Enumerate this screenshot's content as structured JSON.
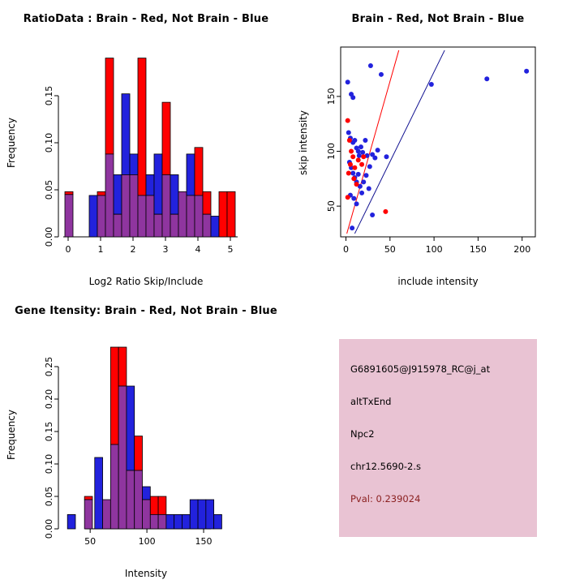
{
  "info_panel": {
    "background": "#e9c3d3",
    "lines": [
      "G6891605@J915978_RC@j_at",
      "altTxEnd",
      "Npc2",
      "chr12.5690-2.s"
    ],
    "pval": "Pval: 0.239024",
    "pval_color": "#8b2020"
  },
  "chart_data": [
    {
      "type": "bar",
      "subtype": "overlaid-histogram",
      "title": "RatioData : Brain - Red, Not Brain - Blue",
      "xlabel": "Log2 Ratio Skip/Include",
      "ylabel": "Frequency",
      "legend": {
        "red": "Brain",
        "blue": "Not Brain"
      },
      "xlim": [
        -0.3,
        5.4
      ],
      "ylim": [
        0,
        0.2
      ],
      "bin_width": 0.25,
      "x_ticks": [
        {
          "v": 0,
          "label": "0"
        },
        {
          "v": 1,
          "label": "1"
        },
        {
          "v": 2,
          "label": "2"
        },
        {
          "v": 3,
          "label": "3"
        },
        {
          "v": 4,
          "label": "4"
        },
        {
          "v": 5,
          "label": "5"
        }
      ],
      "y_ticks": [
        {
          "v": 0,
          "label": "0.00"
        },
        {
          "v": 0.05,
          "label": "0.05"
        },
        {
          "v": 0.1,
          "label": "0.10"
        },
        {
          "v": 0.15,
          "label": "0.15"
        }
      ],
      "colors": {
        "red": "#ff0000",
        "blue": "#2222dd",
        "overlap": "#8f359f"
      },
      "bins": [
        {
          "x": -0.1,
          "red": 0.048,
          "blue": 0.045
        },
        {
          "x": 0.65,
          "red": 0,
          "blue": 0.044
        },
        {
          "x": 0.9,
          "red": 0.048,
          "blue": 0.044
        },
        {
          "x": 1.15,
          "red": 0.19,
          "blue": 0.088
        },
        {
          "x": 1.4,
          "red": 0.024,
          "blue": 0.066
        },
        {
          "x": 1.65,
          "red": 0.066,
          "blue": 0.152
        },
        {
          "x": 1.9,
          "red": 0.066,
          "blue": 0.088
        },
        {
          "x": 2.15,
          "red": 0.19,
          "blue": 0.044
        },
        {
          "x": 2.4,
          "red": 0.044,
          "blue": 0.066
        },
        {
          "x": 2.65,
          "red": 0.024,
          "blue": 0.088
        },
        {
          "x": 2.9,
          "red": 0.143,
          "blue": 0.066
        },
        {
          "x": 3.15,
          "red": 0.024,
          "blue": 0.066
        },
        {
          "x": 3.4,
          "red": 0.048,
          "blue": 0.048
        },
        {
          "x": 3.65,
          "red": 0.044,
          "blue": 0.088
        },
        {
          "x": 3.9,
          "red": 0.095,
          "blue": 0.044
        },
        {
          "x": 4.15,
          "red": 0.048,
          "blue": 0.024
        },
        {
          "x": 4.4,
          "red": 0,
          "blue": 0.022
        },
        {
          "x": 4.65,
          "red": 0.048,
          "blue": 0
        },
        {
          "x": 4.9,
          "red": 0.048,
          "blue": 0
        }
      ]
    },
    {
      "type": "scatter",
      "title": "Brain - Red, Not Brain - Blue",
      "xlabel": "include intensity",
      "ylabel": "skip intensity",
      "xlim": [
        -6,
        215
      ],
      "ylim": [
        22,
        195
      ],
      "x_ticks": [
        {
          "v": 0,
          "label": "0"
        },
        {
          "v": 50,
          "label": "50"
        },
        {
          "v": 100,
          "label": "100"
        },
        {
          "v": 150,
          "label": "150"
        },
        {
          "v": 200,
          "label": "200"
        }
      ],
      "y_ticks": [
        {
          "v": 50,
          "label": "50"
        },
        {
          "v": 100,
          "label": "100"
        },
        {
          "v": 150,
          "label": "150"
        }
      ],
      "series": [
        {
          "name": "Not Brain",
          "color": "#2222dd",
          "points": [
            [
              2,
              163
            ],
            [
              6,
              152
            ],
            [
              8,
              149
            ],
            [
              28,
              178
            ],
            [
              40,
              170
            ],
            [
              97,
              161
            ],
            [
              160,
              166
            ],
            [
              205,
              173
            ],
            [
              3,
              117
            ],
            [
              5,
              112
            ],
            [
              8,
              108
            ],
            [
              10,
              110
            ],
            [
              12,
              103
            ],
            [
              14,
              100
            ],
            [
              15,
              96
            ],
            [
              17,
              104
            ],
            [
              19,
              99
            ],
            [
              22,
              110
            ],
            [
              24,
              96
            ],
            [
              27,
              86
            ],
            [
              30,
              97
            ],
            [
              33,
              94
            ],
            [
              36,
              101
            ],
            [
              46,
              95
            ],
            [
              4,
              90
            ],
            [
              6,
              85
            ],
            [
              8,
              80
            ],
            [
              10,
              76
            ],
            [
              12,
              72
            ],
            [
              14,
              79
            ],
            [
              16,
              68
            ],
            [
              18,
              62
            ],
            [
              20,
              72
            ],
            [
              23,
              78
            ],
            [
              26,
              66
            ],
            [
              5,
              60
            ],
            [
              9,
              57
            ],
            [
              12,
              52
            ],
            [
              30,
              42
            ],
            [
              7,
              30
            ]
          ]
        },
        {
          "name": "Brain",
          "color": "#ff0000",
          "points": [
            [
              2,
              128
            ],
            [
              4,
              110
            ],
            [
              6,
              100
            ],
            [
              8,
              95
            ],
            [
              5,
              88
            ],
            [
              3,
              80
            ],
            [
              9,
              75
            ],
            [
              12,
              70
            ],
            [
              14,
              92
            ],
            [
              18,
              88
            ],
            [
              20,
              95
            ],
            [
              45,
              45
            ],
            [
              2,
              58
            ],
            [
              10,
              85
            ]
          ]
        }
      ],
      "lines": [
        {
          "name": "brain-fit-line",
          "color": "#ff0000",
          "from": [
            1,
            25
          ],
          "to": [
            60,
            192
          ]
        },
        {
          "name": "notbrain-fit-line",
          "color": "#101090",
          "from": [
            10,
            25
          ],
          "to": [
            112,
            192
          ]
        }
      ]
    },
    {
      "type": "bar",
      "subtype": "overlaid-histogram",
      "title": "Gene Itensity: Brain - Red, Not Brain - Blue",
      "xlabel": "Intensity",
      "ylabel": "Frequency",
      "legend": {
        "red": "Brain",
        "blue": "Not Brain"
      },
      "xlim": [
        22,
        185
      ],
      "ylim": [
        0,
        0.29
      ],
      "bin_width": 7,
      "x_ticks": [
        {
          "v": 50,
          "label": "50"
        },
        {
          "v": 100,
          "label": "100"
        },
        {
          "v": 150,
          "label": "150"
        }
      ],
      "y_ticks": [
        {
          "v": 0,
          "label": "0.00"
        },
        {
          "v": 0.05,
          "label": "0.05"
        },
        {
          "v": 0.1,
          "label": "0.10"
        },
        {
          "v": 0.15,
          "label": "0.15"
        },
        {
          "v": 0.2,
          "label": "0.20"
        },
        {
          "v": 0.25,
          "label": "0.25"
        }
      ],
      "colors": {
        "red": "#ff0000",
        "blue": "#2222dd",
        "overlap": "#8f359f"
      },
      "bins": [
        {
          "x": 30,
          "red": 0,
          "blue": 0.022
        },
        {
          "x": 45,
          "red": 0.05,
          "blue": 0.045
        },
        {
          "x": 54,
          "red": 0,
          "blue": 0.11
        },
        {
          "x": 61,
          "red": 0.045,
          "blue": 0.045
        },
        {
          "x": 68,
          "red": 0.28,
          "blue": 0.13
        },
        {
          "x": 75,
          "red": 0.28,
          "blue": 0.22
        },
        {
          "x": 82,
          "red": 0.09,
          "blue": 0.22
        },
        {
          "x": 89,
          "red": 0.143,
          "blue": 0.09
        },
        {
          "x": 96,
          "red": 0.045,
          "blue": 0.065
        },
        {
          "x": 103,
          "red": 0.05,
          "blue": 0.022
        },
        {
          "x": 110,
          "red": 0.05,
          "blue": 0.022
        },
        {
          "x": 117,
          "red": 0,
          "blue": 0.022
        },
        {
          "x": 124,
          "red": 0,
          "blue": 0.022
        },
        {
          "x": 131,
          "red": 0,
          "blue": 0.022
        },
        {
          "x": 138,
          "red": 0,
          "blue": 0.045
        },
        {
          "x": 145,
          "red": 0,
          "blue": 0.045
        },
        {
          "x": 152,
          "red": 0,
          "blue": 0.045
        },
        {
          "x": 159,
          "red": 0,
          "blue": 0.022
        }
      ]
    }
  ]
}
